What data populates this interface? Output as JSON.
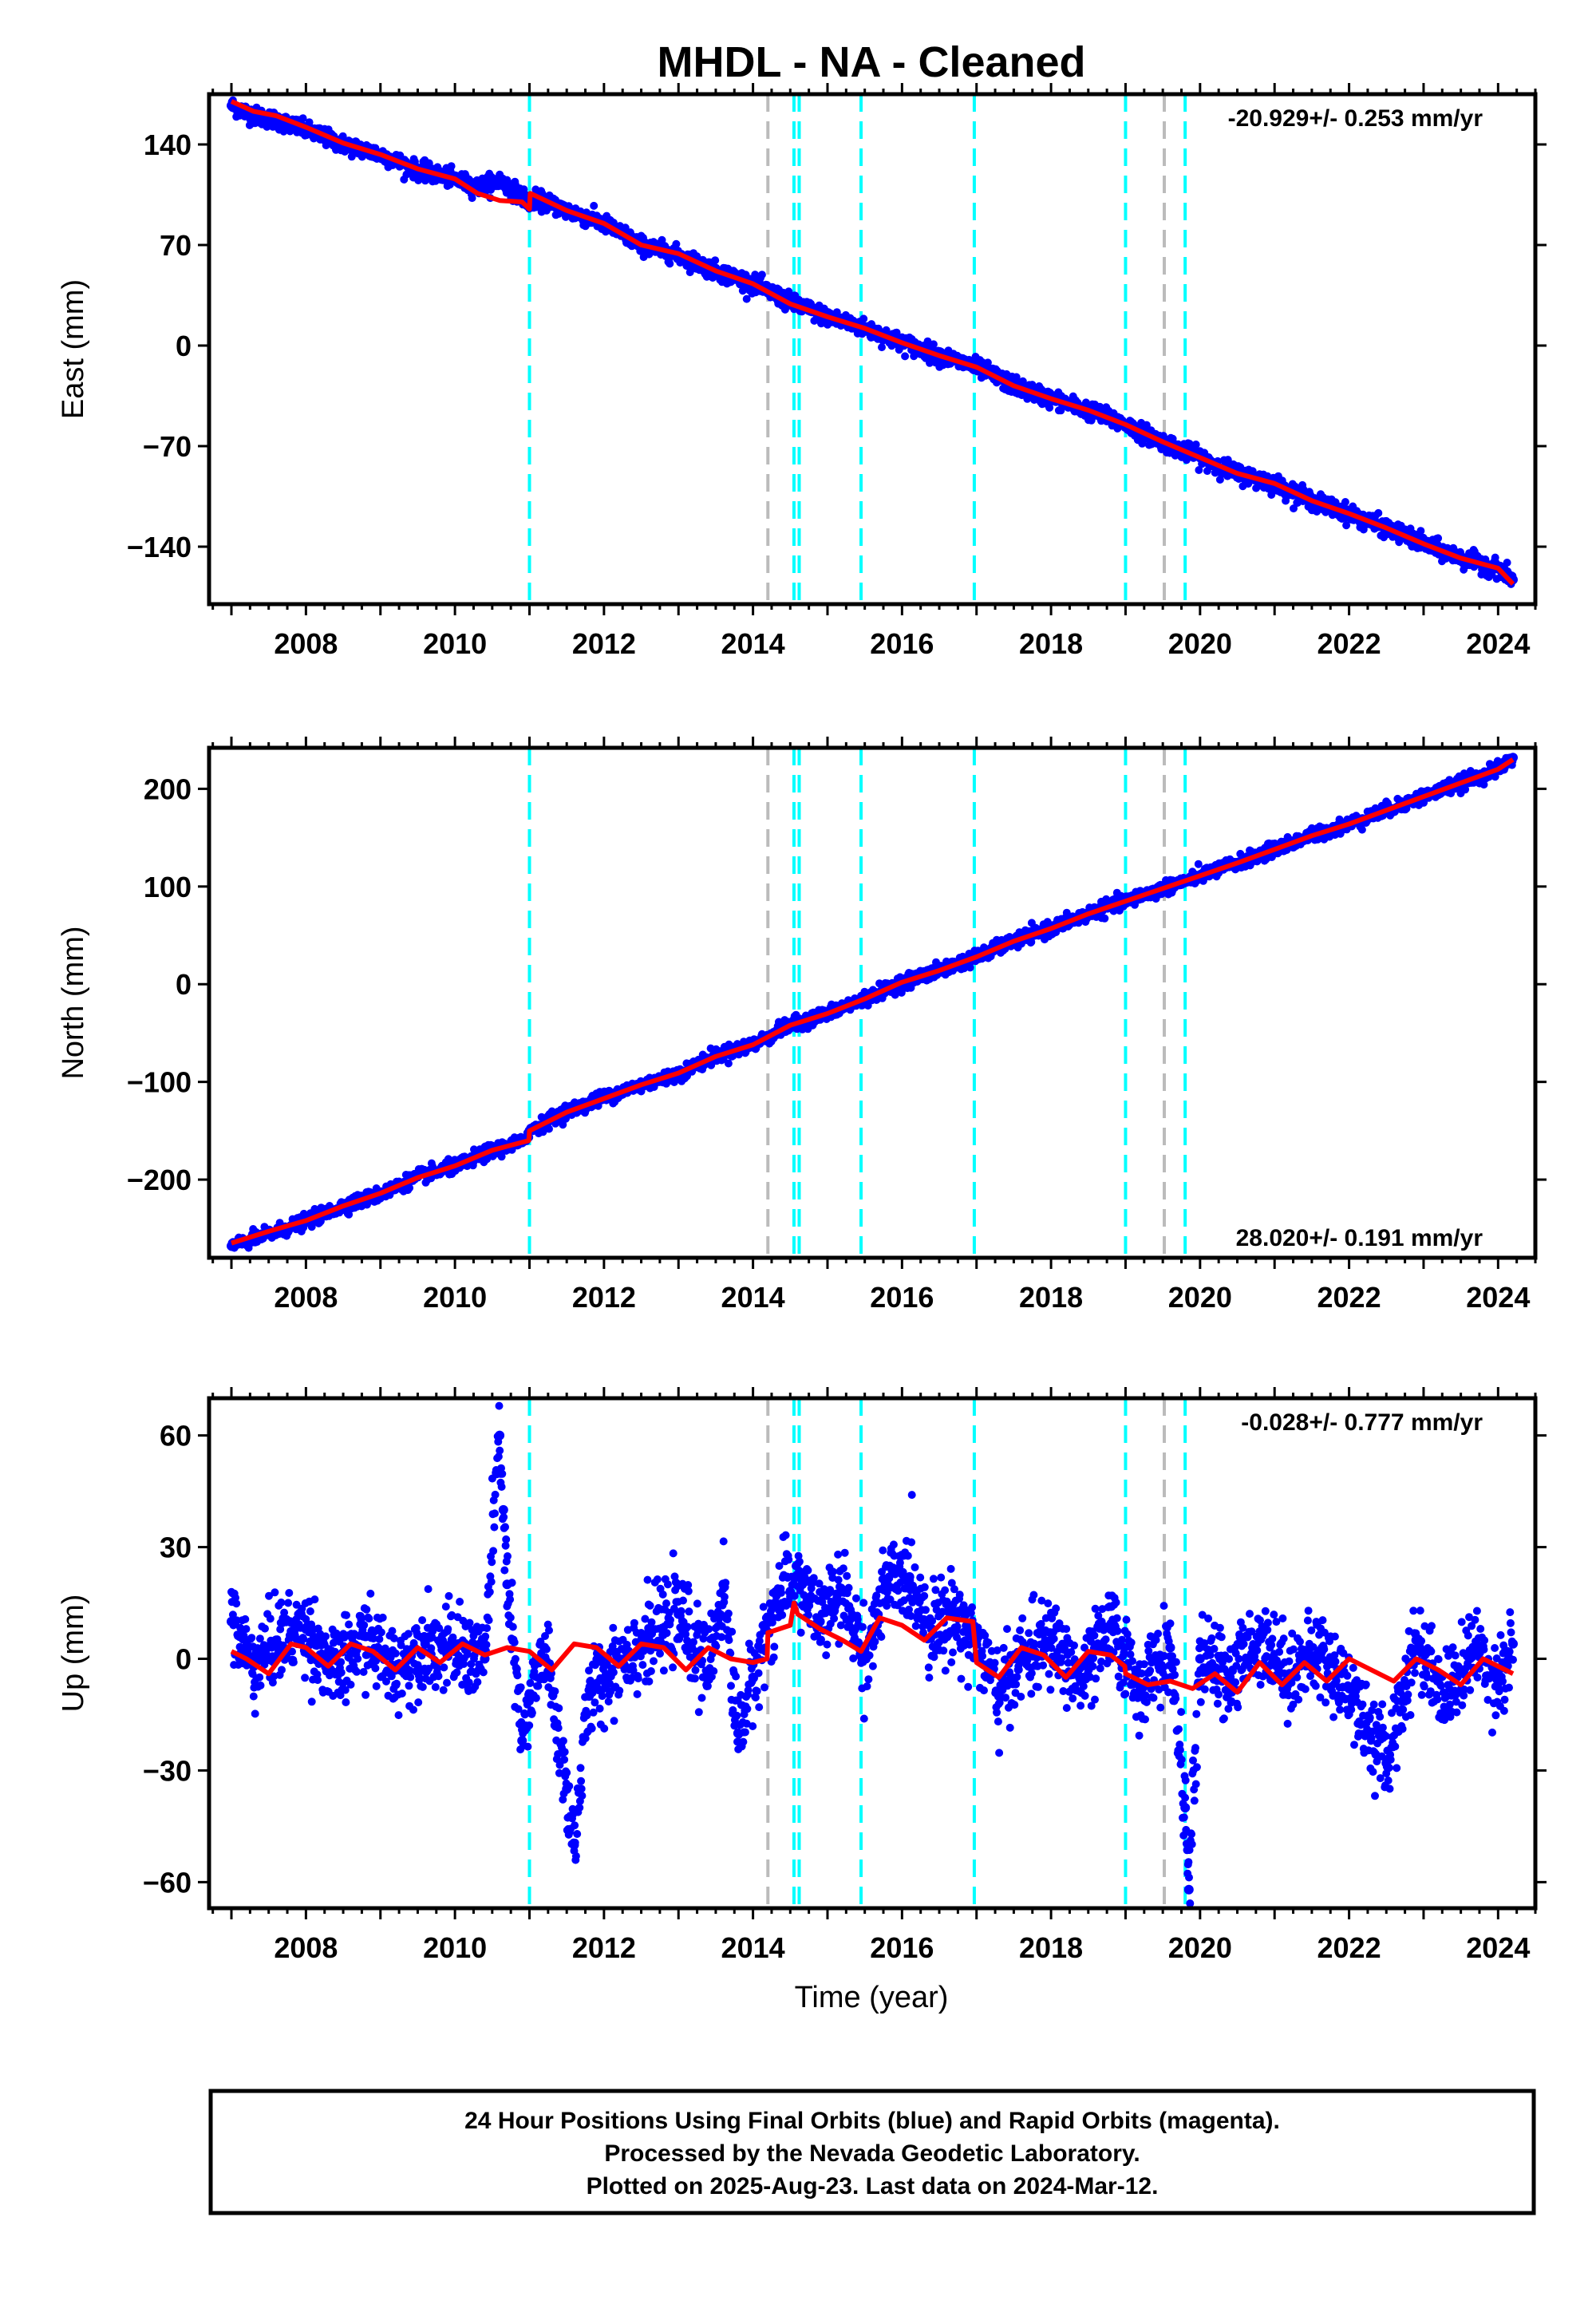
{
  "title": "MHDL  - NA - Cleaned",
  "chart_data": [
    {
      "type": "scatter",
      "component": "East",
      "ylabel": "East (mm)",
      "xlim": [
        2006.7,
        2024.5
      ],
      "ylim": [
        -180,
        175
      ],
      "yticks": [
        140,
        70,
        0,
        -70,
        -140
      ],
      "ytick_labels": [
        "140",
        "70",
        "0",
        "−70",
        "−140"
      ],
      "xticks": [
        2008,
        2010,
        2012,
        2014,
        2016,
        2018,
        2020,
        2022,
        2024
      ],
      "xtick_labels": [
        "2008",
        "2010",
        "2012",
        "2014",
        "2016",
        "2018",
        "2020",
        "2022",
        "2024"
      ],
      "rate_text": "-20.929+/- 0.253 mm/yr",
      "rate_position": "top-right",
      "series": [
        {
          "color": "#0000ff",
          "style": "points",
          "x": [
            2007.0,
            2007.3,
            2007.6,
            2008.0,
            2008.5,
            2009.0,
            2009.5,
            2010.0,
            2010.3,
            2010.6,
            2010.9,
            2011.0,
            2011.1,
            2011.5,
            2012.0,
            2012.5,
            2013.0,
            2013.5,
            2014.0,
            2014.5,
            2015.0,
            2015.5,
            2016.0,
            2016.5,
            2017.0,
            2017.5,
            2018.0,
            2018.5,
            2019.0,
            2019.5,
            2020.0,
            2020.5,
            2021.0,
            2021.5,
            2022.0,
            2022.5,
            2023.0,
            2023.5,
            2024.0,
            2024.2
          ],
          "y": [
            167,
            160,
            157,
            150,
            140,
            133,
            122,
            116,
            110,
            115,
            104,
            100,
            102,
            94,
            85,
            70,
            63,
            52,
            43,
            30,
            20,
            12,
            2,
            -7,
            -15,
            -28,
            -37,
            -45,
            -55,
            -67,
            -78,
            -89,
            -96,
            -108,
            -117,
            -127,
            -138,
            -148,
            -155,
            -163
          ]
        },
        {
          "color": "#ff0000",
          "style": "line",
          "x": [
            2007.0,
            2007.3,
            2007.6,
            2008.0,
            2008.5,
            2009.0,
            2009.5,
            2010.0,
            2010.3,
            2010.6,
            2010.9,
            2011.0,
            2011.01,
            2011.5,
            2012.0,
            2012.5,
            2013.0,
            2013.5,
            2014.0,
            2014.5,
            2015.0,
            2015.5,
            2016.0,
            2016.5,
            2017.0,
            2017.5,
            2018.0,
            2018.5,
            2019.0,
            2019.5,
            2020.0,
            2020.5,
            2021.0,
            2021.5,
            2022.0,
            2022.5,
            2023.0,
            2023.5,
            2024.0,
            2024.2
          ],
          "y": [
            170,
            163,
            160,
            152,
            141,
            133,
            123,
            116,
            106,
            101,
            100,
            95,
            106,
            94,
            85,
            70,
            64,
            52,
            43,
            29,
            20,
            12,
            2,
            -7,
            -15,
            -28,
            -37,
            -45,
            -55,
            -67,
            -78,
            -89,
            -96,
            -108,
            -117,
            -127,
            -138,
            -148,
            -155,
            -166
          ]
        }
      ]
    },
    {
      "type": "scatter",
      "component": "North",
      "ylabel": "North (mm)",
      "xlim": [
        2006.7,
        2024.5
      ],
      "ylim": [
        -280,
        242
      ],
      "yticks": [
        200,
        100,
        0,
        -100,
        -200
      ],
      "ytick_labels": [
        "200",
        "100",
        "0",
        "−100",
        "−200"
      ],
      "xticks": [
        2008,
        2010,
        2012,
        2014,
        2016,
        2018,
        2020,
        2022,
        2024
      ],
      "xtick_labels": [
        "2008",
        "2010",
        "2012",
        "2014",
        "2016",
        "2018",
        "2020",
        "2022",
        "2024"
      ],
      "rate_text": "28.020+/- 0.191 mm/yr",
      "rate_position": "bottom-right",
      "series": [
        {
          "color": "#0000ff",
          "style": "points",
          "x": [
            2007.0,
            2007.5,
            2008.0,
            2008.5,
            2009.0,
            2009.5,
            2010.0,
            2010.5,
            2010.9,
            2011.0,
            2011.5,
            2012.0,
            2012.5,
            2013.0,
            2013.5,
            2014.0,
            2014.5,
            2015.0,
            2015.5,
            2016.0,
            2016.5,
            2017.0,
            2017.5,
            2018.0,
            2018.5,
            2019.0,
            2019.5,
            2020.0,
            2020.5,
            2021.0,
            2021.5,
            2022.0,
            2022.5,
            2023.0,
            2023.5,
            2024.0,
            2024.2
          ],
          "y": [
            -268,
            -256,
            -243,
            -227,
            -215,
            -197,
            -187,
            -170,
            -162,
            -150,
            -130,
            -116,
            -103,
            -92,
            -73,
            -62,
            -42,
            -30,
            -15,
            2,
            14,
            28,
            44,
            57,
            72,
            85,
            98,
            111,
            124,
            138,
            152,
            164,
            178,
            192,
            206,
            220,
            232
          ]
        },
        {
          "color": "#ff0000",
          "style": "line",
          "x": [
            2007.0,
            2007.5,
            2008.0,
            2008.5,
            2009.0,
            2009.5,
            2010.0,
            2010.5,
            2010.99,
            2011.0,
            2011.5,
            2012.0,
            2012.5,
            2013.0,
            2013.5,
            2014.0,
            2014.5,
            2015.0,
            2015.5,
            2016.0,
            2016.5,
            2017.0,
            2017.5,
            2018.0,
            2018.5,
            2019.0,
            2019.5,
            2020.0,
            2020.5,
            2021.0,
            2021.5,
            2022.0,
            2022.5,
            2023.0,
            2023.5,
            2024.0,
            2024.2
          ],
          "y": [
            -265,
            -253,
            -242,
            -227,
            -214,
            -198,
            -186,
            -170,
            -160,
            -150,
            -131,
            -117,
            -103,
            -91,
            -74,
            -62,
            -42,
            -30,
            -15,
            2,
            14,
            28,
            44,
            57,
            72,
            85,
            98,
            111,
            124,
            138,
            152,
            164,
            178,
            192,
            206,
            220,
            230
          ]
        }
      ]
    },
    {
      "type": "scatter",
      "component": "Up",
      "ylabel": "Up (mm)",
      "xlabel": "Time (year)",
      "xlim": [
        2006.7,
        2024.5
      ],
      "ylim": [
        -67,
        70
      ],
      "yticks": [
        60,
        30,
        0,
        -30,
        -60
      ],
      "ytick_labels": [
        "60",
        "30",
        "0",
        "−30",
        "−60"
      ],
      "xticks": [
        2008,
        2010,
        2012,
        2014,
        2016,
        2018,
        2020,
        2022,
        2024
      ],
      "xtick_labels": [
        "2008",
        "2010",
        "2012",
        "2014",
        "2016",
        "2018",
        "2020",
        "2022",
        "2024"
      ],
      "rate_text": "-0.028+/- 0.777 mm/yr",
      "rate_position": "top-right",
      "series": [
        {
          "color": "#0000ff",
          "style": "points",
          "x": [
            2007.0,
            2007.3,
            2007.6,
            2008.0,
            2008.4,
            2008.8,
            2009.2,
            2009.6,
            2010.0,
            2010.4,
            2010.6,
            2010.65,
            2010.7,
            2010.9,
            2011.2,
            2011.5,
            2011.6,
            2011.8,
            2012.2,
            2012.6,
            2013.0,
            2013.4,
            2013.6,
            2013.8,
            2014.0,
            2014.3,
            2014.6,
            2014.9,
            2015.2,
            2015.5,
            2015.8,
            2016.1,
            2016.4,
            2016.7,
            2017.0,
            2017.3,
            2017.6,
            2018.0,
            2018.4,
            2018.8,
            2019.2,
            2019.6,
            2019.8,
            2019.85,
            2020.0,
            2020.4,
            2020.8,
            2021.2,
            2021.6,
            2022.0,
            2022.5,
            2022.9,
            2023.3,
            2023.7,
            2024.0,
            2024.2
          ],
          "y": [
            10,
            -2,
            5,
            8,
            -4,
            6,
            -3,
            4,
            2,
            0,
            60,
            40,
            20,
            -22,
            3,
            -35,
            -50,
            -10,
            0,
            5,
            12,
            -4,
            20,
            -20,
            -5,
            15,
            22,
            10,
            18,
            0,
            20,
            22,
            8,
            12,
            5,
            -10,
            0,
            5,
            -6,
            8,
            -8,
            3,
            -40,
            -62,
            0,
            -5,
            6,
            -4,
            2,
            -8,
            -28,
            5,
            -10,
            3,
            -6,
            4
          ]
        },
        {
          "color": "#ff0000",
          "style": "line",
          "x": [
            2007.0,
            2007.2,
            2007.5,
            2007.8,
            2008.0,
            2008.3,
            2008.6,
            2008.9,
            2009.2,
            2009.5,
            2009.8,
            2010.1,
            2010.4,
            2010.7,
            2011.0,
            2011.3,
            2011.6,
            2011.9,
            2012.2,
            2012.5,
            2012.8,
            2013.1,
            2013.4,
            2013.7,
            2014.0,
            2014.19,
            2014.2,
            2014.5,
            2014.55,
            2014.6,
            2014.9,
            2015.2,
            2015.45,
            2015.7,
            2016.0,
            2016.3,
            2016.6,
            2016.95,
            2017.0,
            2017.3,
            2017.6,
            2017.9,
            2018.2,
            2018.5,
            2018.8,
            2018.99,
            2019.0,
            2019.3,
            2019.6,
            2019.9,
            2020.2,
            2020.5,
            2020.8,
            2021.1,
            2021.4,
            2021.7,
            2022.0,
            2022.3,
            2022.6,
            2022.9,
            2023.2,
            2023.5,
            2023.8,
            2024.0,
            2024.2
          ],
          "y": [
            2,
            0,
            -4,
            4,
            3,
            -2,
            4,
            2,
            -3,
            3,
            -1,
            4,
            1,
            3,
            2,
            -3,
            4,
            3,
            -2,
            4,
            3,
            -3,
            3,
            0,
            -1,
            0,
            7,
            9,
            15,
            12,
            8,
            5,
            2,
            11,
            9,
            5,
            11,
            10,
            -1,
            -5,
            3,
            1,
            -5,
            2,
            1,
            -2,
            -4,
            -7,
            -6,
            -8,
            -4,
            -9,
            -1,
            -7,
            -1,
            -6,
            0,
            -3,
            -6,
            0,
            -3,
            -7,
            0,
            -2,
            -4
          ]
        }
      ]
    }
  ],
  "vlines": {
    "cyan": [
      2011.0,
      2014.55,
      2014.62,
      2015.45,
      2016.97,
      2019.0,
      2019.8
    ],
    "gray": [
      2014.2,
      2019.52
    ]
  },
  "colors": {
    "points": "#0000ff",
    "fit": "#ff0000",
    "cyan_lines": "#00ffff",
    "gray_lines": "#bbbbbb"
  },
  "footer": {
    "line1": "24 Hour Positions Using Final Orbits (blue) and Rapid Orbits (magenta).",
    "line2": "Processed by the Nevada Geodetic Laboratory.",
    "line3": "Plotted on 2025-Aug-23. Last data on 2024-Mar-12."
  }
}
